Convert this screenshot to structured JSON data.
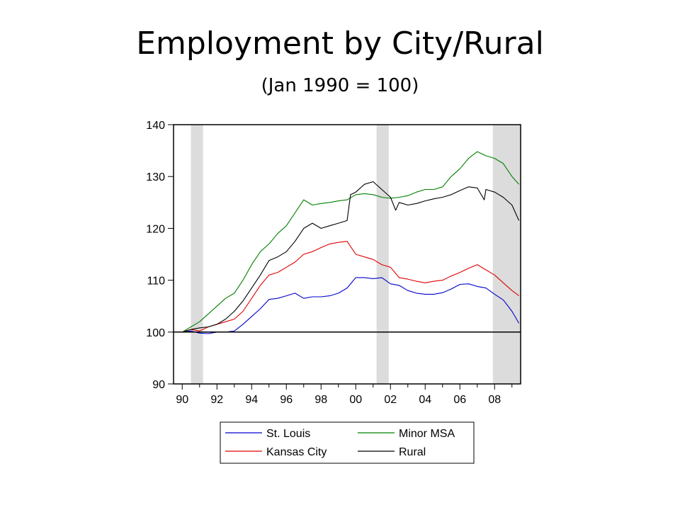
{
  "chart_data": {
    "type": "line",
    "title": "Employment by City/Rural",
    "subtitle": "(Jan 1990 = 100)",
    "xlim": [
      1989.5,
      2009.5
    ],
    "ylim": [
      90,
      140
    ],
    "yticks": [
      90,
      100,
      110,
      120,
      130,
      140
    ],
    "xticks": [
      {
        "value": 1990,
        "label": "90"
      },
      {
        "value": 1992,
        "label": "92"
      },
      {
        "value": 1994,
        "label": "94"
      },
      {
        "value": 1996,
        "label": "96"
      },
      {
        "value": 1998,
        "label": "98"
      },
      {
        "value": 2000,
        "label": "00"
      },
      {
        "value": 2002,
        "label": "02"
      },
      {
        "value": 2004,
        "label": "04"
      },
      {
        "value": 2006,
        "label": "06"
      },
      {
        "value": 2008,
        "label": "08"
      }
    ],
    "baseline": 100,
    "recessions": [
      [
        1990.5,
        1991.2
      ],
      [
        2001.2,
        2001.9
      ],
      [
        2007.9,
        2009.5
      ]
    ],
    "legend_position": "bottom",
    "series": [
      {
        "name": "St. Louis",
        "color": "#0000cc",
        "x": [
          1990,
          1990.5,
          1991,
          1991.5,
          1992,
          1992.5,
          1993,
          1993.5,
          1994,
          1994.5,
          1995,
          1995.5,
          1996,
          1996.5,
          1997,
          1997.5,
          1998,
          1998.5,
          1999,
          1999.5,
          2000,
          2000.5,
          2001,
          2001.5,
          2002,
          2002.5,
          2003,
          2003.5,
          2004,
          2004.5,
          2005,
          2005.5,
          2006,
          2006.5,
          2007,
          2007.5,
          2008,
          2008.5,
          2009,
          2009.4
        ],
        "y": [
          100,
          100.2,
          99.8,
          99.7,
          100,
          100,
          100.2,
          101.5,
          103,
          104.5,
          106.3,
          106.5,
          107,
          107.5,
          106.5,
          106.8,
          106.8,
          107,
          107.5,
          108.5,
          110.5,
          110.5,
          110.3,
          110.5,
          109.3,
          109,
          108,
          107.5,
          107.3,
          107.3,
          107.6,
          108.3,
          109.2,
          109.3,
          108.8,
          108.5,
          107.3,
          106.2,
          104,
          101.7
        ]
      },
      {
        "name": "Minor MSA",
        "color": "#008000",
        "x": [
          1990,
          1990.5,
          1991,
          1991.5,
          1992,
          1992.5,
          1993,
          1993.5,
          1994,
          1994.5,
          1995,
          1995.5,
          1996,
          1996.5,
          1997,
          1997.5,
          1998,
          1998.5,
          1999,
          1999.5,
          2000,
          2000.5,
          2001,
          2001.5,
          2002,
          2002.5,
          2003,
          2003.5,
          2004,
          2004.5,
          2005,
          2005.5,
          2006,
          2006.5,
          2007,
          2007.5,
          2008,
          2008.5,
          2009,
          2009.4
        ],
        "y": [
          100,
          101,
          102,
          103.5,
          105,
          106.5,
          107.5,
          110,
          113,
          115.5,
          117,
          119,
          120.5,
          123,
          125.5,
          124.5,
          124.8,
          125,
          125.3,
          125.5,
          126.5,
          126.7,
          126.5,
          126,
          125.8,
          126,
          126.3,
          127,
          127.5,
          127.5,
          128,
          130,
          131.5,
          133.5,
          134.8,
          134,
          133.5,
          132.5,
          130,
          128.5
        ]
      },
      {
        "name": "Kansas City",
        "color": "#e00000",
        "x": [
          1990,
          1990.5,
          1991,
          1991.5,
          1992,
          1992.5,
          1993,
          1993.5,
          1994,
          1994.5,
          1995,
          1995.5,
          1996,
          1996.5,
          1997,
          1997.5,
          1998,
          1998.5,
          1999,
          1999.5,
          2000,
          2000.5,
          2001,
          2001.5,
          2002,
          2002.5,
          2003,
          2003.5,
          2004,
          2004.5,
          2005,
          2005.5,
          2006,
          2006.5,
          2007,
          2007.5,
          2008,
          2008.5,
          2009,
          2009.4
        ],
        "y": [
          100,
          100.5,
          100.2,
          101,
          101.5,
          102,
          102.5,
          104,
          106.5,
          109,
          111,
          111.5,
          112.5,
          113.5,
          115,
          115.5,
          116.3,
          117,
          117.3,
          117.5,
          115,
          114.5,
          114,
          113,
          112.5,
          110.5,
          110.2,
          109.8,
          109.5,
          109.8,
          110,
          110.8,
          111.5,
          112.3,
          113,
          112,
          111,
          109.5,
          108,
          107
        ]
      },
      {
        "name": "Rural",
        "color": "#000000",
        "x": [
          1990,
          1990.5,
          1991,
          1991.5,
          1992,
          1992.5,
          1993,
          1993.5,
          1994,
          1994.5,
          1995,
          1995.5,
          1996,
          1996.5,
          1997,
          1997.5,
          1998,
          1998.5,
          1999,
          1999.5,
          1999.7,
          2000,
          2000.5,
          2001,
          2001.5,
          2002,
          2002.3,
          2002.5,
          2003,
          2003.5,
          2004,
          2004.5,
          2005,
          2005.5,
          2006,
          2006.5,
          2007,
          2007.4,
          2007.5,
          2008,
          2008.5,
          2009,
          2009.4
        ],
        "y": [
          100,
          100.5,
          100.8,
          101,
          101.5,
          102.5,
          104,
          106,
          108.5,
          111,
          113.8,
          114.5,
          115.5,
          117.5,
          120,
          121,
          120,
          120.5,
          121,
          121.5,
          126.5,
          127,
          128.5,
          129,
          127.5,
          126,
          123.5,
          125,
          124.5,
          124.8,
          125.3,
          125.7,
          126,
          126.5,
          127.3,
          128,
          127.8,
          125.5,
          127.5,
          127,
          126,
          124.5,
          121.5
        ]
      }
    ]
  }
}
